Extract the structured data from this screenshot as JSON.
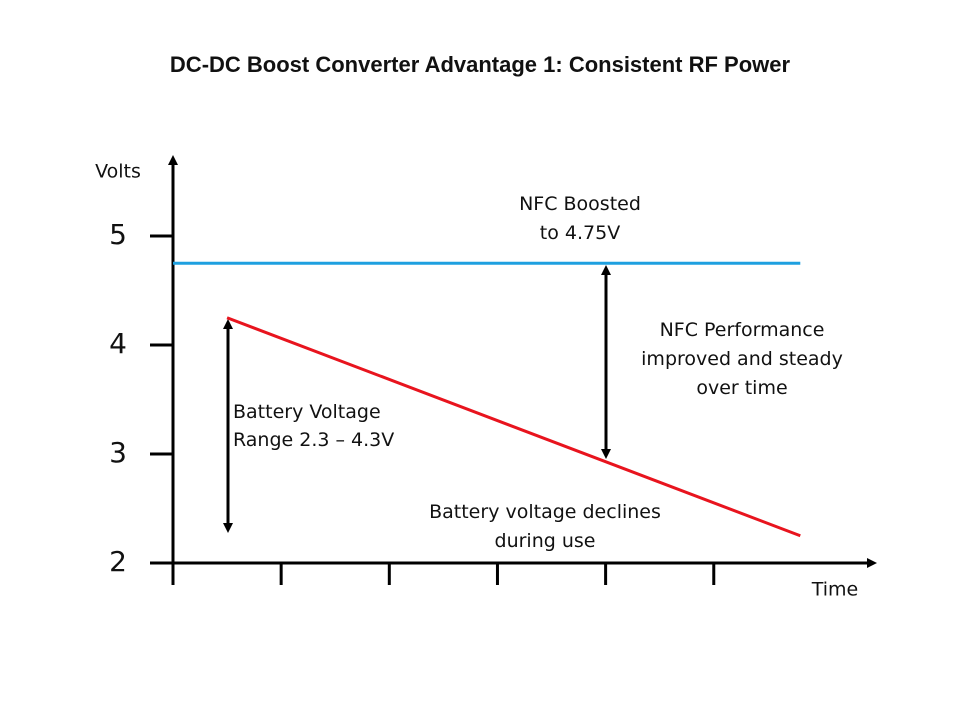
{
  "chart_data": {
    "type": "line",
    "title": "DC-DC Boost Converter Advantage 1: Consistent RF Power",
    "y_label": "Volts",
    "x_label": "Time",
    "xlim": [
      0,
      6.5
    ],
    "xticks": [
      0,
      1,
      2,
      3,
      4,
      5
    ],
    "ylim": [
      2,
      5.75
    ],
    "yticks": [
      2,
      3,
      4,
      5
    ],
    "series": [
      {
        "color": "#1ea0e0",
        "x": [
          0,
          5.8
        ],
        "values": [
          4.75,
          4.75
        ]
      },
      {
        "color": "#e8141e",
        "x": [
          0.5,
          5.8
        ],
        "values": [
          4.25,
          2.25
        ]
      }
    ],
    "annotations": [
      {
        "lines": [
          "NFC Boosted",
          "to 4.75V"
        ]
      },
      {
        "lines": [
          "NFC Performance",
          "improved and steady",
          "over time"
        ]
      },
      {
        "lines": [
          "Battery Voltage",
          "Range 2.3 – 4.3V"
        ]
      },
      {
        "lines": [
          "Battery voltage declines",
          "during use"
        ]
      }
    ]
  }
}
